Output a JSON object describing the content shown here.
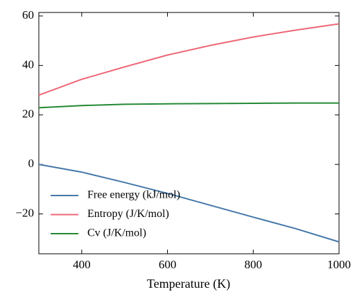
{
  "chart_data": {
    "type": "line",
    "x_label": "Temperature (K)",
    "x": [
      300,
      400,
      500,
      600,
      700,
      800,
      900,
      1000
    ],
    "series": [
      {
        "name": "Free energy (kJ/mol)",
        "color": "#4477aa",
        "values": [
          0,
          -3.1,
          -7.3,
          -11.7,
          -16.5,
          -21.3,
          -26,
          -31.3
        ]
      },
      {
        "name": "Entropy (J/K/mol)",
        "color": "#ee6677",
        "values": [
          28,
          34.4,
          39.4,
          44.2,
          48.1,
          51.5,
          54.3,
          56.8
        ]
      },
      {
        "name": "Cv (J/K/mol)",
        "color": "#228833",
        "values": [
          22.9,
          23.8,
          24.3,
          24.5,
          24.6,
          24.7,
          24.8,
          24.8
        ]
      }
    ],
    "xlim": [
      300,
      1000
    ],
    "xticks": [
      400,
      600,
      800,
      1000
    ],
    "ylim": [
      -36.1,
      61.4
    ],
    "yticks": [
      {
        "value": -20,
        "label": "−20"
      },
      0,
      20,
      40,
      60
    ],
    "legend": "lower left",
    "grid": false
  }
}
